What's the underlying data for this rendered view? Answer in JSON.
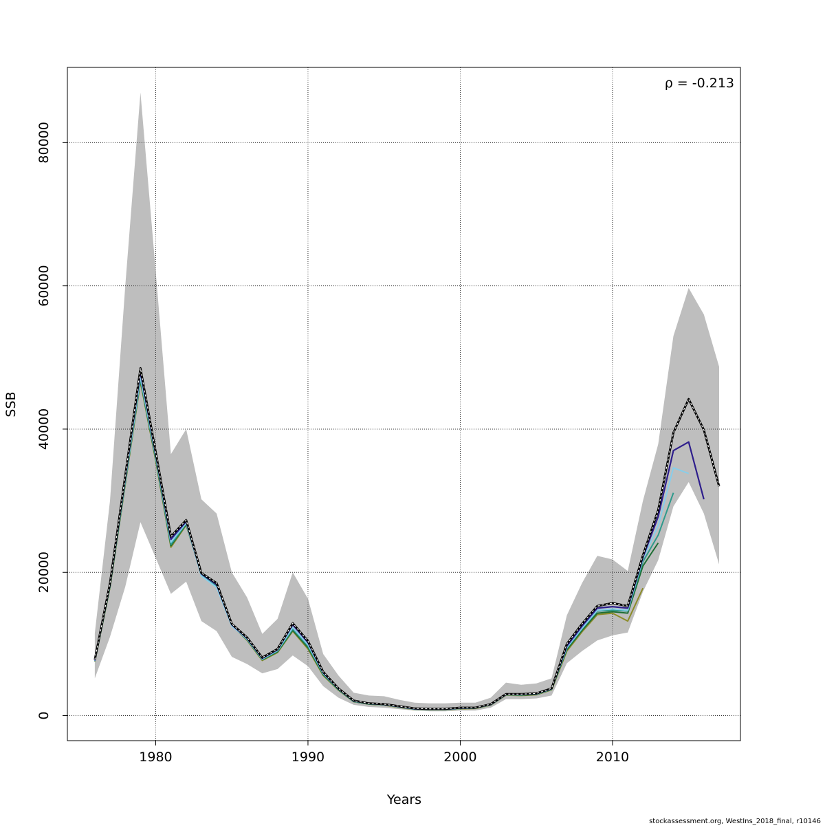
{
  "chart_data": {
    "type": "line",
    "xlabel": "Years",
    "ylabel": "SSB",
    "xlim": [
      1974.2,
      2018.4
    ],
    "ylim": [
      -3500,
      90500
    ],
    "x_ticks": [
      1980,
      1990,
      2000,
      2010
    ],
    "y_ticks": [
      0,
      20000,
      40000,
      60000,
      80000
    ],
    "grid": true,
    "annotation": "ρ = -0.213",
    "footer": "stockassessment.org, WestIns_2018_final, r10146",
    "confidence_band": {
      "color": "#bebebe",
      "x": [
        1976,
        1977,
        1978,
        1979,
        1980,
        1981,
        1982,
        1983,
        1984,
        1985,
        1986,
        1987,
        1988,
        1989,
        1990,
        1991,
        1992,
        1993,
        1994,
        1995,
        1996,
        1997,
        1998,
        1999,
        2000,
        2001,
        2002,
        2003,
        2004,
        2005,
        2006,
        2007,
        2008,
        2009,
        2010,
        2011,
        2012,
        2013,
        2014,
        2015,
        2016,
        2017
      ],
      "upper": [
        11500,
        30000,
        60000,
        87000,
        62000,
        36500,
        40000,
        30200,
        28200,
        20000,
        16500,
        11400,
        13500,
        20000,
        16300,
        8600,
        5600,
        3200,
        2800,
        2700,
        2200,
        1800,
        1700,
        1700,
        1800,
        1800,
        2500,
        4600,
        4300,
        4500,
        5200,
        14000,
        18500,
        22300,
        21800,
        20200,
        30000,
        37900,
        53000,
        59700,
        56000,
        48700
      ],
      "lower": [
        5200,
        11000,
        18000,
        27000,
        22000,
        17000,
        18700,
        13200,
        11800,
        8200,
        7200,
        5900,
        6500,
        8400,
        6900,
        4100,
        2500,
        1500,
        1200,
        1100,
        900,
        700,
        600,
        600,
        700,
        700,
        1100,
        2300,
        2300,
        2400,
        2800,
        7300,
        9000,
        10500,
        11200,
        11600,
        17300,
        21700,
        29200,
        32600,
        28200,
        21100
      ]
    },
    "series": [
      {
        "color": "#000000",
        "dashed": true,
        "width": 3,
        "x": [
          1976,
          1977,
          1978,
          1979,
          1980,
          1981,
          1982,
          1983,
          1984,
          1985,
          1986,
          1987,
          1988,
          1989,
          1990,
          1991,
          1992,
          1993,
          1994,
          1995,
          1996,
          1997,
          1998,
          1999,
          2000,
          2001,
          2002,
          2003,
          2004,
          2005,
          2006,
          2007,
          2008,
          2009,
          2010,
          2011,
          2012,
          2013,
          2014,
          2015,
          2016,
          2017
        ],
        "values": [
          7800,
          18500,
          33500,
          48500,
          36800,
          25000,
          27300,
          19900,
          18500,
          12800,
          10900,
          8100,
          9300,
          12900,
          10400,
          6100,
          3800,
          2100,
          1700,
          1600,
          1300,
          1000,
          950,
          950,
          1100,
          1100,
          1600,
          3000,
          3000,
          3100,
          3800,
          10000,
          12800,
          15300,
          15700,
          15300,
          22400,
          28700,
          39500,
          44200,
          39900,
          32000
        ]
      },
      {
        "color": "#2e1e8c",
        "dashed": false,
        "width": 2.2,
        "x": [
          1976,
          1977,
          1978,
          1979,
          1980,
          1981,
          1982,
          1983,
          1984,
          1985,
          1986,
          1987,
          1988,
          1989,
          1990,
          1991,
          1992,
          1993,
          1994,
          1995,
          1996,
          1997,
          1998,
          1999,
          2000,
          2001,
          2002,
          2003,
          2004,
          2005,
          2006,
          2007,
          2008,
          2009,
          2010,
          2011,
          2012,
          2013,
          2014,
          2015,
          2016
        ],
        "values": [
          7700,
          18300,
          33200,
          48000,
          36500,
          24600,
          27100,
          19800,
          18300,
          12700,
          10800,
          8000,
          9200,
          12700,
          10200,
          6000,
          3750,
          2050,
          1700,
          1550,
          1250,
          950,
          900,
          900,
          1050,
          1100,
          1550,
          2950,
          2950,
          3050,
          3750,
          9700,
          12500,
          15000,
          15200,
          15000,
          22100,
          27800,
          37000,
          38200,
          30200
        ]
      },
      {
        "color": "#87ceeb",
        "dashed": false,
        "width": 2,
        "x": [
          1976,
          1977,
          1978,
          1979,
          1980,
          1981,
          1982,
          1983,
          1984,
          1985,
          1986,
          1987,
          1988,
          1989,
          1990,
          1991,
          1992,
          1993,
          1994,
          1995,
          1996,
          1997,
          1998,
          1999,
          2000,
          2001,
          2002,
          2003,
          2004,
          2005,
          2006,
          2007,
          2008,
          2009,
          2010,
          2011,
          2012,
          2013,
          2014,
          2015
        ],
        "values": [
          7650,
          18200,
          32800,
          47300,
          36200,
          24200,
          26900,
          19500,
          17900,
          12500,
          10700,
          7900,
          9100,
          12300,
          9900,
          5900,
          3700,
          2000,
          1650,
          1500,
          1200,
          900,
          850,
          850,
          1000,
          1050,
          1500,
          2900,
          2900,
          3000,
          3700,
          9500,
          12200,
          14700,
          14900,
          14700,
          21900,
          26500,
          34600,
          33800
        ]
      },
      {
        "color": "#2e9a8c",
        "dashed": false,
        "width": 2,
        "x": [
          1976,
          1977,
          1978,
          1979,
          1980,
          1981,
          1982,
          1983,
          1984,
          1985,
          1986,
          1987,
          1988,
          1989,
          1990,
          1991,
          1992,
          1993,
          1994,
          1995,
          1996,
          1997,
          1998,
          1999,
          2000,
          2001,
          2002,
          2003,
          2004,
          2005,
          2006,
          2007,
          2008,
          2009,
          2010,
          2011,
          2012,
          2013,
          2014
        ],
        "values": [
          7600,
          18100,
          32600,
          47000,
          36000,
          23900,
          26800,
          19600,
          18000,
          12600,
          10600,
          7850,
          9000,
          12100,
          9700,
          5800,
          3650,
          2000,
          1650,
          1500,
          1200,
          900,
          850,
          850,
          1000,
          1050,
          1500,
          2900,
          2900,
          3000,
          3700,
          9400,
          12100,
          14600,
          14700,
          14600,
          21500,
          25200,
          31100
        ]
      },
      {
        "color": "#1e6e34",
        "dashed": false,
        "width": 2,
        "x": [
          1976,
          1977,
          1978,
          1979,
          1980,
          1981,
          1982,
          1983,
          1984,
          1985,
          1986,
          1987,
          1988,
          1989,
          1990,
          1991,
          1992,
          1993,
          1994,
          1995,
          1996,
          1997,
          1998,
          1999,
          2000,
          2001,
          2002,
          2003,
          2004,
          2005,
          2006,
          2007,
          2008,
          2009,
          2010,
          2011,
          2012,
          2013
        ],
        "values": [
          7600,
          18000,
          32500,
          46800,
          35800,
          23700,
          26700,
          19700,
          18200,
          12600,
          10600,
          7800,
          8900,
          11900,
          9500,
          5700,
          3600,
          1950,
          1600,
          1500,
          1200,
          900,
          850,
          850,
          1000,
          1050,
          1500,
          2900,
          2850,
          2950,
          3650,
          9200,
          11900,
          14300,
          14500,
          14300,
          20900,
          24100
        ]
      },
      {
        "color": "#8c8c28",
        "dashed": false,
        "width": 2,
        "x": [
          1976,
          1977,
          1978,
          1979,
          1980,
          1981,
          1982,
          1983,
          1984,
          1985,
          1986,
          1987,
          1988,
          1989,
          1990,
          1991,
          1992,
          1993,
          1994,
          1995,
          1996,
          1997,
          1998,
          1999,
          2000,
          2001,
          2002,
          2003,
          2004,
          2005,
          2006,
          2007,
          2008,
          2009,
          2010,
          2011,
          2012
        ],
        "values": [
          7550,
          17900,
          32300,
          46600,
          35600,
          23500,
          26600,
          19800,
          18400,
          12600,
          10500,
          7700,
          8800,
          11800,
          9300,
          5600,
          3550,
          1950,
          1600,
          1450,
          1150,
          850,
          800,
          800,
          950,
          1000,
          1450,
          2850,
          2800,
          2900,
          3600,
          9000,
          11700,
          14100,
          14300,
          13200,
          17800
        ]
      }
    ]
  }
}
